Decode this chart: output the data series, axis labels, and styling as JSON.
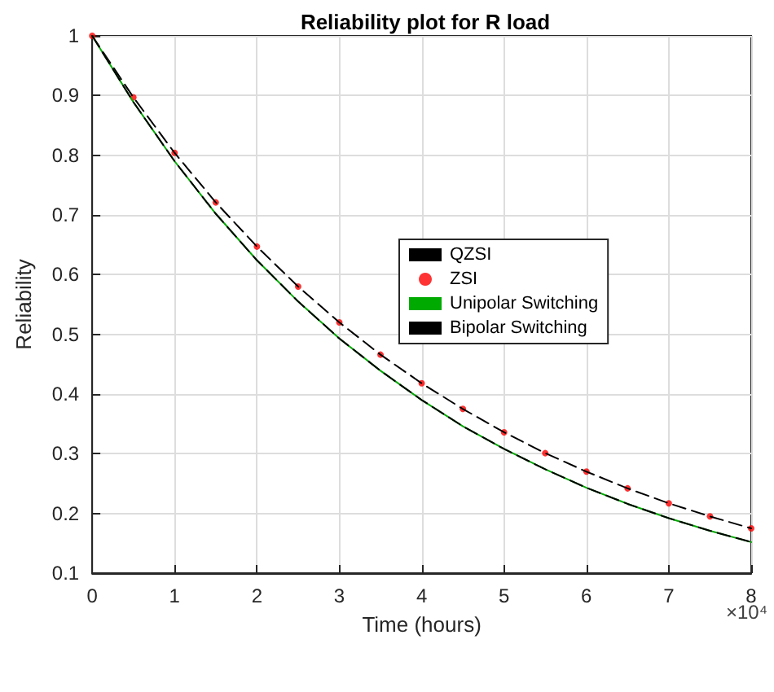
{
  "chart_data": {
    "type": "line",
    "title": "Reliability plot for R load",
    "xlabel": "Time (hours)",
    "ylabel": "Reliability",
    "annotations": [
      "×10⁴"
    ],
    "x": [
      0,
      0.5,
      1,
      1.5,
      2,
      2.5,
      3,
      3.5,
      4,
      4.5,
      5,
      5.5,
      6,
      6.5,
      7,
      7.5,
      8
    ],
    "series": [
      {
        "name": "QZSI",
        "color": "#000000",
        "line_style": "dashed",
        "values": [
          1,
          0.897,
          0.804,
          0.721,
          0.647,
          0.58,
          0.52,
          0.466,
          0.418,
          0.375,
          0.336,
          0.301,
          0.27,
          0.242,
          0.217,
          0.195,
          0.175
        ]
      },
      {
        "name": "ZSI",
        "type": "scatter",
        "color": "#ff0000",
        "marker": "circle",
        "values": [
          1,
          0.897,
          0.804,
          0.721,
          0.647,
          0.58,
          0.52,
          0.466,
          0.418,
          0.375,
          0.336,
          0.301,
          0.27,
          0.242,
          0.217,
          0.195,
          0.175
        ]
      },
      {
        "name": "Unipolar Switching",
        "color": "#00aa00",
        "line_style": "solid",
        "values": [
          1,
          0.889,
          0.79,
          0.702,
          0.624,
          0.555,
          0.493,
          0.439,
          0.39,
          0.346,
          0.308,
          0.274,
          0.243,
          0.216,
          0.192,
          0.171,
          0.152
        ]
      },
      {
        "name": "Bipolar Switching",
        "color": "#000000",
        "line_style": "dashed",
        "values": [
          1,
          0.889,
          0.79,
          0.702,
          0.624,
          0.555,
          0.493,
          0.439,
          0.39,
          0.346,
          0.308,
          0.274,
          0.243,
          0.216,
          0.192,
          0.171,
          0.152
        ]
      }
    ],
    "xlim": [
      0,
      8
    ],
    "xticks": [
      0,
      1,
      2,
      3,
      4,
      5,
      6,
      7,
      8
    ],
    "ylim": [
      0.1,
      1
    ],
    "yticks": [
      0.1,
      0.2,
      0.3,
      0.4,
      0.5,
      0.6,
      0.7,
      0.8,
      0.9,
      1
    ],
    "grid": true,
    "legend": "center"
  }
}
